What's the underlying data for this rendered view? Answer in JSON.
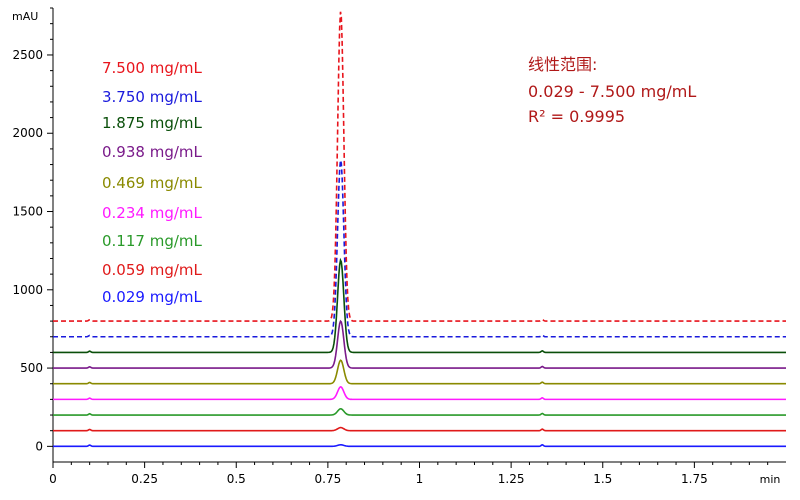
{
  "chart_data": {
    "type": "line",
    "ylabel_unit": "mAU",
    "xlabel_unit": "min",
    "xlim": [
      0,
      2.0
    ],
    "ylim": [
      -100,
      2800
    ],
    "x_ticks": [
      0,
      0.25,
      0.5,
      0.75,
      1,
      1.25,
      1.5,
      1.75
    ],
    "x_tick_labels": [
      "0",
      "0.25",
      "0.5",
      "0.75",
      "1",
      "1.25",
      "1.5",
      "1.75"
    ],
    "y_ticks": [
      0,
      500,
      1000,
      1500,
      2000,
      2500
    ],
    "y_tick_labels": [
      "0",
      "500",
      "1000",
      "1500",
      "2000",
      "2500"
    ],
    "grid": false,
    "legend_position": "top-left",
    "peak_retention_time": 0.785,
    "series": [
      {
        "name": "7.500 mg/mL",
        "color": "#e8141c",
        "dashed": true,
        "baseline": 800,
        "peak_apex": 2780,
        "x": [
          0,
          0.1,
          0.75,
          0.785,
          0.82,
          1.335,
          2.0
        ],
        "y": [
          800,
          800,
          800,
          2780,
          800,
          800,
          800
        ]
      },
      {
        "name": "3.750 mg/mL",
        "color": "#1a1adc",
        "dashed": true,
        "baseline": 700,
        "peak_apex": 1830,
        "x": [
          0,
          0.1,
          0.75,
          0.785,
          0.82,
          1.335,
          2.0
        ],
        "y": [
          700,
          700,
          700,
          1830,
          700,
          700,
          700
        ]
      },
      {
        "name": "1.875 mg/mL",
        "color": "#0a4f0a",
        "dashed": false,
        "baseline": 600,
        "peak_apex": 1190,
        "x": [
          0,
          0.1,
          0.75,
          0.785,
          0.82,
          1.335,
          2.0
        ],
        "y": [
          600,
          600,
          600,
          1190,
          600,
          600,
          600
        ]
      },
      {
        "name": "0.938 mg/mL",
        "color": "#7a1a8a",
        "dashed": false,
        "baseline": 500,
        "peak_apex": 800,
        "x": [
          0,
          0.1,
          0.75,
          0.785,
          0.82,
          1.335,
          2.0
        ],
        "y": [
          500,
          500,
          500,
          800,
          500,
          500,
          500
        ]
      },
      {
        "name": "0.469 mg/mL",
        "color": "#8a8a00",
        "dashed": false,
        "baseline": 400,
        "peak_apex": 550,
        "x": [
          0,
          0.1,
          0.75,
          0.785,
          0.82,
          1.335,
          2.0
        ],
        "y": [
          400,
          400,
          400,
          550,
          400,
          400,
          400
        ]
      },
      {
        "name": "0.234 mg/mL",
        "color": "#ff1aff",
        "dashed": false,
        "baseline": 300,
        "peak_apex": 380,
        "x": [
          0,
          0.1,
          0.75,
          0.785,
          0.82,
          1.335,
          2.0
        ],
        "y": [
          300,
          300,
          300,
          380,
          300,
          300,
          300
        ]
      },
      {
        "name": "0.117 mg/mL",
        "color": "#2a9a2a",
        "dashed": false,
        "baseline": 200,
        "peak_apex": 240,
        "x": [
          0,
          0.1,
          0.75,
          0.785,
          0.82,
          1.335,
          2.0
        ],
        "y": [
          200,
          200,
          200,
          240,
          200,
          200,
          200
        ]
      },
      {
        "name": "0.059 mg/mL",
        "color": "#e01a1a",
        "dashed": false,
        "baseline": 100,
        "peak_apex": 120,
        "x": [
          0,
          0.1,
          0.75,
          0.785,
          0.82,
          1.335,
          2.0
        ],
        "y": [
          100,
          100,
          100,
          120,
          100,
          100,
          100
        ]
      },
      {
        "name": "0.029 mg/mL",
        "color": "#1a1aff",
        "dashed": false,
        "baseline": 0,
        "peak_apex": 10,
        "x": [
          0,
          0.1,
          0.75,
          0.785,
          0.82,
          1.335,
          2.0
        ],
        "y": [
          0,
          0,
          0,
          10,
          0,
          0,
          0
        ]
      }
    ],
    "annotation": {
      "lines": [
        "线性范围:",
        "0.029 - 7.500 mg/mL",
        "R² = 0.9995"
      ],
      "color": "#b01818"
    }
  }
}
